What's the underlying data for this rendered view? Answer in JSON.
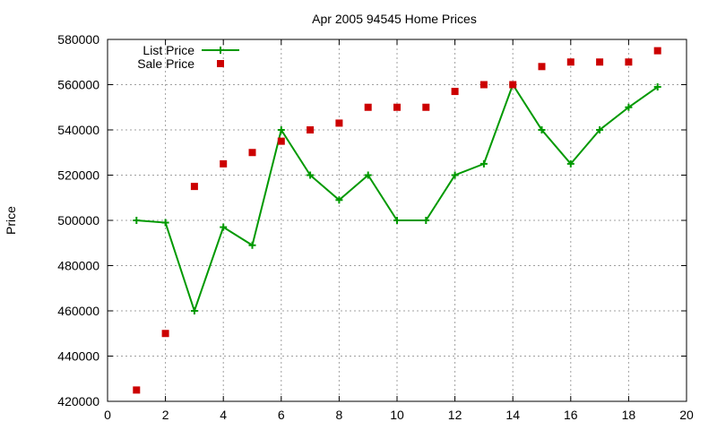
{
  "chart_data": {
    "type": "line",
    "title": "Apr 2005 94545 Home Prices",
    "xlabel": "",
    "ylabel": "Price",
    "xlim": [
      0,
      20
    ],
    "ylim": [
      420000,
      580000
    ],
    "xticks": [
      0,
      2,
      4,
      6,
      8,
      10,
      12,
      14,
      16,
      18,
      20
    ],
    "yticks": [
      420000,
      440000,
      460000,
      480000,
      500000,
      520000,
      540000,
      560000,
      580000
    ],
    "grid": true,
    "legend_position": "top-left",
    "series": [
      {
        "name": "List Price",
        "style": "line-with-plus-markers",
        "color": "#009900",
        "x": [
          1,
          2,
          3,
          4,
          5,
          6,
          7,
          8,
          9,
          10,
          11,
          12,
          13,
          14,
          15,
          16,
          17,
          18,
          19
        ],
        "y": [
          500000,
          499000,
          460000,
          497000,
          489000,
          540000,
          520000,
          509000,
          520000,
          500000,
          500000,
          520000,
          525000,
          560000,
          540000,
          525000,
          540000,
          550000,
          559000
        ]
      },
      {
        "name": "Sale Price",
        "style": "square-markers",
        "color": "#cc0000",
        "x": [
          1,
          2,
          3,
          4,
          5,
          6,
          7,
          8,
          9,
          10,
          11,
          12,
          13,
          14,
          15,
          16,
          17,
          18,
          19
        ],
        "y": [
          425000,
          450000,
          515000,
          525000,
          530000,
          535000,
          540000,
          543000,
          550000,
          550000,
          550000,
          557000,
          560000,
          560000,
          568000,
          570000,
          570000,
          570000,
          575000
        ]
      }
    ]
  }
}
